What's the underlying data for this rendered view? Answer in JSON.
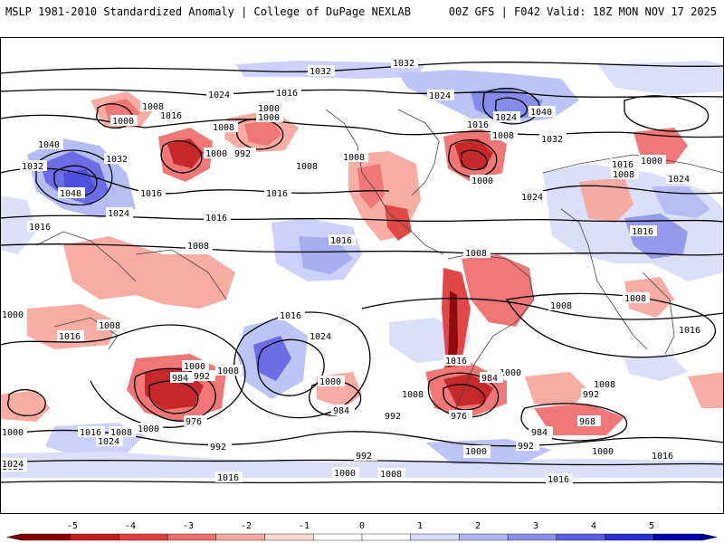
{
  "header": {
    "left_title": "MSLP 1981-2010 Standardized Anomaly | College of DuPage NEXLAB",
    "right_title": "00Z GFS | F042 Valid: 18Z MON NOV 17 2025"
  },
  "isobar_labels": [
    "1032",
    "1032",
    "1024",
    "1016",
    "1008",
    "1000",
    "1016",
    "1000",
    "1008",
    "992",
    "1000",
    "1040",
    "1032",
    "1032",
    "1048",
    "1016",
    "1024",
    "1016",
    "1016",
    "1008",
    "1016",
    "1008",
    "1000",
    "1008",
    "1024",
    "1016",
    "1040",
    "1024",
    "1032",
    "1008",
    "1000",
    "1024",
    "1000",
    "1024",
    "1016",
    "1008",
    "1008",
    "1016",
    "1016",
    "1008",
    "1024",
    "1016",
    "1000",
    "984",
    "992",
    "1008",
    "976",
    "1000",
    "984",
    "992",
    "1008",
    "1000",
    "984",
    "992",
    "1008",
    "976",
    "1016",
    "984",
    "1000",
    "992",
    "968",
    "1008",
    "1000",
    "1016",
    "1032",
    "1024",
    "1016",
    "1008",
    "992",
    "984",
    "1000",
    "992",
    "1000",
    "1000",
    "1016",
    "1016",
    "1008",
    "1024",
    "1000",
    "1008",
    "1016",
    "1016",
    "1000"
  ],
  "colorbar": {
    "ticks": [
      "-5",
      "-4",
      "-3",
      "-2",
      "-1",
      "0",
      "1",
      "2",
      "3",
      "4",
      "5"
    ],
    "colors": [
      "#8b0000",
      "#c41e1e",
      "#e04040",
      "#f07070",
      "#f7a8a0",
      "#fcd8d0",
      "#ffffff",
      "#ffffff",
      "#d8dcfa",
      "#b0b6f2",
      "#8a90ec",
      "#5a5ee2",
      "#2a2cd6",
      "#0000b0"
    ]
  }
}
